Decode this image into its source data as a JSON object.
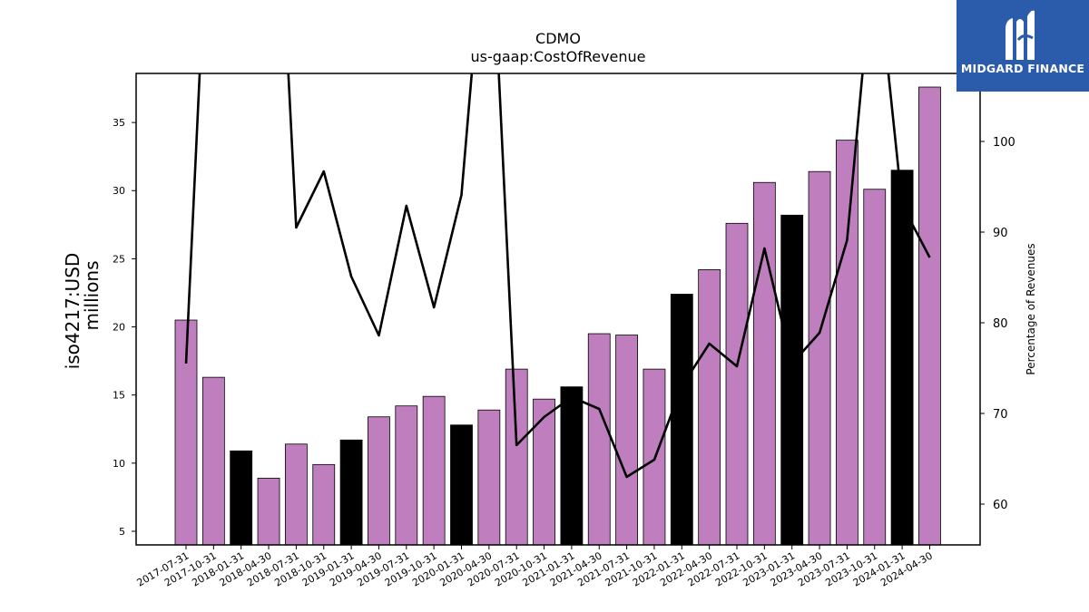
{
  "chart_data": {
    "type": "bar",
    "title": "CDMO",
    "subtitle": "us-gaap:CostOfRevenue",
    "ylabel_line1": "iso4217:USD",
    "ylabel_line2": "millions",
    "y2label": "Percentage of Revenues",
    "categories": [
      "2017-07-31",
      "2017-10-31",
      "2018-01-31",
      "2018-04-30",
      "2018-07-31",
      "2018-10-31",
      "2019-01-31",
      "2019-04-30",
      "2019-07-31",
      "2019-10-31",
      "2020-01-31",
      "2020-04-30",
      "2020-07-31",
      "2020-10-31",
      "2021-01-31",
      "2021-04-30",
      "2021-07-31",
      "2021-10-31",
      "2022-01-31",
      "2022-04-30",
      "2022-07-31",
      "2022-10-31",
      "2023-01-31",
      "2023-04-30",
      "2023-07-31",
      "2023-10-31",
      "2024-01-31",
      "2024-04-30"
    ],
    "values": [
      20.5,
      16.3,
      10.9,
      8.9,
      11.4,
      9.9,
      11.7,
      13.4,
      14.2,
      14.9,
      12.8,
      13.9,
      16.9,
      14.7,
      15.6,
      19.5,
      19.4,
      16.9,
      22.4,
      24.2,
      27.6,
      30.6,
      28.2,
      31.4,
      33.7,
      30.1,
      31.5,
      37.6
    ],
    "bar_colors": [
      "#bf7fbf",
      "#bf7fbf",
      "#000000",
      "#bf7fbf",
      "#bf7fbf",
      "#bf7fbf",
      "#000000",
      "#bf7fbf",
      "#bf7fbf",
      "#bf7fbf",
      "#000000",
      "#bf7fbf",
      "#bf7fbf",
      "#bf7fbf",
      "#000000",
      "#bf7fbf",
      "#bf7fbf",
      "#bf7fbf",
      "#000000",
      "#bf7fbf",
      "#bf7fbf",
      "#bf7fbf",
      "#000000",
      "#bf7fbf",
      "#bf7fbf",
      "#bf7fbf",
      "#000000",
      "#bf7fbf"
    ],
    "line_values": [
      75.5,
      140,
      125,
      150,
      90.5,
      96.7,
      85.1,
      78.6,
      92.9,
      81.7,
      94.1,
      130,
      66.5,
      69.6,
      71.8,
      70.5,
      63.0,
      64.9,
      73.0,
      77.7,
      75.2,
      88.2,
      75.5,
      78.9,
      89.1,
      122,
      93.0,
      87.2
    ],
    "ylim": [
      4,
      38.6
    ],
    "y2lim": [
      55.5,
      107.5
    ],
    "yticks": [
      5,
      10,
      15,
      20,
      25,
      30,
      35
    ],
    "y2ticks": [
      60,
      70,
      80,
      90,
      100
    ],
    "grid": false
  },
  "logo": {
    "text": "MIDGARD FINANCE"
  }
}
